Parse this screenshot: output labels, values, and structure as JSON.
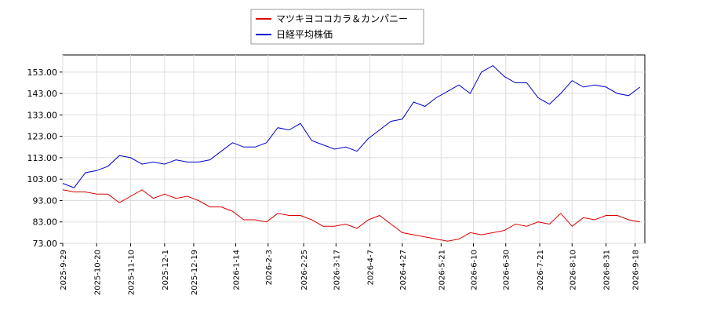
{
  "chart_data": {
    "type": "line",
    "legend": "top-center",
    "grid": true,
    "x": [
      "2025-9-29",
      "2025-10-6",
      "2025-10-13",
      "2025-10-20",
      "2025-10-27",
      "2025-11-3",
      "2025-11-10",
      "2025-11-17",
      "2025-11-24",
      "2025-12-1",
      "2025-12-8",
      "2025-12-15",
      "2025-12-22",
      "2025-12-29",
      "2026-1-5",
      "2026-1-12",
      "2026-1-19",
      "2026-1-26",
      "2026-2-2",
      "2026-2-9",
      "2026-2-16",
      "2026-2-23",
      "2026-3-2",
      "2026-3-9",
      "2026-3-16",
      "2026-3-23",
      "2026-3-30",
      "2026-4-6",
      "2026-4-13",
      "2026-4-20",
      "2026-4-27",
      "2026-5-4",
      "2026-5-11",
      "2026-5-18",
      "2026-5-25",
      "2026-6-1",
      "2026-6-8",
      "2026-6-15",
      "2026-6-22",
      "2026-6-29",
      "2026-7-6",
      "2026-7-13",
      "2026-7-20",
      "2026-7-27",
      "2026-8-3",
      "2026-8-10",
      "2026-8-17",
      "2026-8-24",
      "2026-8-31",
      "2026-9-7",
      "2026-9-14",
      "2026-9-21"
    ],
    "series": [
      {
        "name": "マツキヨココカラ＆カンパニー",
        "color": "#dd0000",
        "values": [
          98,
          97,
          97,
          96,
          96,
          92,
          95,
          98,
          94,
          96,
          94,
          95,
          93,
          90,
          90,
          88,
          84,
          84,
          83,
          87,
          86,
          86,
          84,
          81,
          81,
          82,
          80,
          84,
          86,
          82,
          78,
          77,
          76,
          75,
          74,
          75,
          78,
          77,
          78,
          79,
          82,
          81,
          83,
          82,
          87,
          81,
          85,
          84,
          86,
          86,
          84,
          83
        ]
      },
      {
        "name": "日経平均株価",
        "color": "#0000cc",
        "values": [
          101,
          99,
          106,
          107,
          109,
          114,
          113,
          110,
          111,
          110,
          112,
          111,
          111,
          112,
          116,
          120,
          118,
          118,
          120,
          127,
          126,
          129,
          121,
          119,
          117,
          118,
          116,
          122,
          126,
          130,
          131,
          139,
          137,
          141,
          144,
          147,
          143,
          153,
          156,
          151,
          148,
          148,
          141,
          138,
          143,
          149,
          146,
          147,
          146,
          143,
          142,
          146
        ]
      }
    ],
    "xlim": [
      "2025-9-29",
      "2026-9-24"
    ],
    "xticks": [
      "2025-9-29",
      "2025-10-20",
      "2025-11-10",
      "2025-12-1",
      "2025-12-19",
      "2026-1-14",
      "2026-2-3",
      "2026-2-25",
      "2026-3-17",
      "2026-4-7",
      "2026-4-27",
      "2026-5-21",
      "2026-6-10",
      "2026-6-30",
      "2026-7-21",
      "2026-8-10",
      "2026-8-31",
      "2026-9-18"
    ],
    "ylim": [
      73,
      161
    ],
    "yticks": [
      {
        "value": 73,
        "label": "73.00"
      },
      {
        "value": 83,
        "label": "83.00"
      },
      {
        "value": 93,
        "label": "93.00"
      },
      {
        "value": 103,
        "label": "103.00"
      },
      {
        "value": 113,
        "label": "113.00"
      },
      {
        "value": 123,
        "label": "123.00"
      },
      {
        "value": 133,
        "label": "133.00"
      },
      {
        "value": 143,
        "label": "143.00"
      },
      {
        "value": 153,
        "label": "153.00"
      }
    ]
  }
}
